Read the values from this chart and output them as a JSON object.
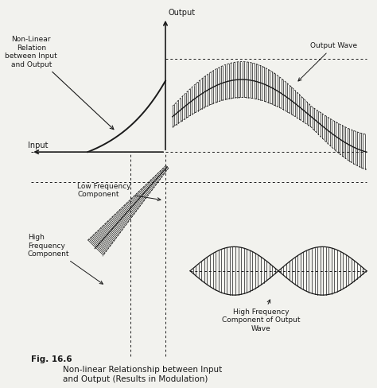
{
  "background_color": "#f2f2ee",
  "line_color": "#1a1a1a",
  "label_output": "Output",
  "label_input": "Input",
  "label_nonlinear": "Non-Linear\nRelation\nbetween Input\nand Output",
  "label_output_wave": "Output Wave",
  "label_low_freq": "Low Frequency\nComponent",
  "label_high_freq": "High\nFrequency\nComponent",
  "label_hf_output": "High Frequency\nComponent of Output\nWave",
  "caption_bold": "Fig. 16.6",
  "caption_text": "     Non-linear Relationship between Input\n     and Output (Results in Modulation)"
}
